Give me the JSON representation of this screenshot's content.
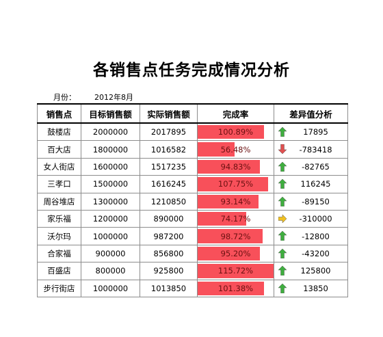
{
  "title": "各销售点任务完成情况分析",
  "month_label": "月份：",
  "month_value": "2012年8月",
  "headers": [
    "销售点",
    "目标销售额",
    "实际销售额",
    "完成率",
    "差异值分析"
  ],
  "rows": [
    {
      "store": "鼓楼店",
      "target": "2000000",
      "actual": "2017895",
      "rate": "100.89%",
      "rate_value": 100.89,
      "trend": "up",
      "diff": "17895"
    },
    {
      "store": "百大店",
      "target": "1800000",
      "actual": "1016582",
      "rate": "56.48%",
      "rate_value": 56.48,
      "trend": "down",
      "diff": "-783418"
    },
    {
      "store": "女人街店",
      "target": "1600000",
      "actual": "1517235",
      "rate": "94.83%",
      "rate_value": 94.83,
      "trend": "up",
      "diff": "-82765"
    },
    {
      "store": "三孝口",
      "target": "1500000",
      "actual": "1616245",
      "rate": "107.75%",
      "rate_value": 107.75,
      "trend": "up",
      "diff": "116245"
    },
    {
      "store": "周谷堆店",
      "target": "1300000",
      "actual": "1210850",
      "rate": "93.14%",
      "rate_value": 93.14,
      "trend": "up",
      "diff": "-89150"
    },
    {
      "store": "家乐福",
      "target": "1200000",
      "actual": "890000",
      "rate": "74.17%",
      "rate_value": 74.17,
      "trend": "side",
      "diff": "-310000"
    },
    {
      "store": "沃尔玛",
      "target": "1000000",
      "actual": "987200",
      "rate": "98.72%",
      "rate_value": 98.72,
      "trend": "up",
      "diff": "-12800"
    },
    {
      "store": "合家福",
      "target": "900000",
      "actual": "856800",
      "rate": "95.20%",
      "rate_value": 95.2,
      "trend": "up",
      "diff": "-43200"
    },
    {
      "store": "百盛店",
      "target": "800000",
      "actual": "925800",
      "rate": "115.72%",
      "rate_value": 115.72,
      "trend": "up",
      "diff": "125800"
    },
    {
      "store": "步行街店",
      "target": "1000000",
      "actual": "1013850",
      "rate": "101.38%",
      "rate_value": 101.38,
      "trend": "up",
      "diff": "13850"
    }
  ],
  "rate_bar_max": 115.72,
  "colors": {
    "bar": "#f8505a",
    "up_arrow": "#3fae3f",
    "down_arrow": "#e05050",
    "side_arrow": "#f0c020"
  }
}
